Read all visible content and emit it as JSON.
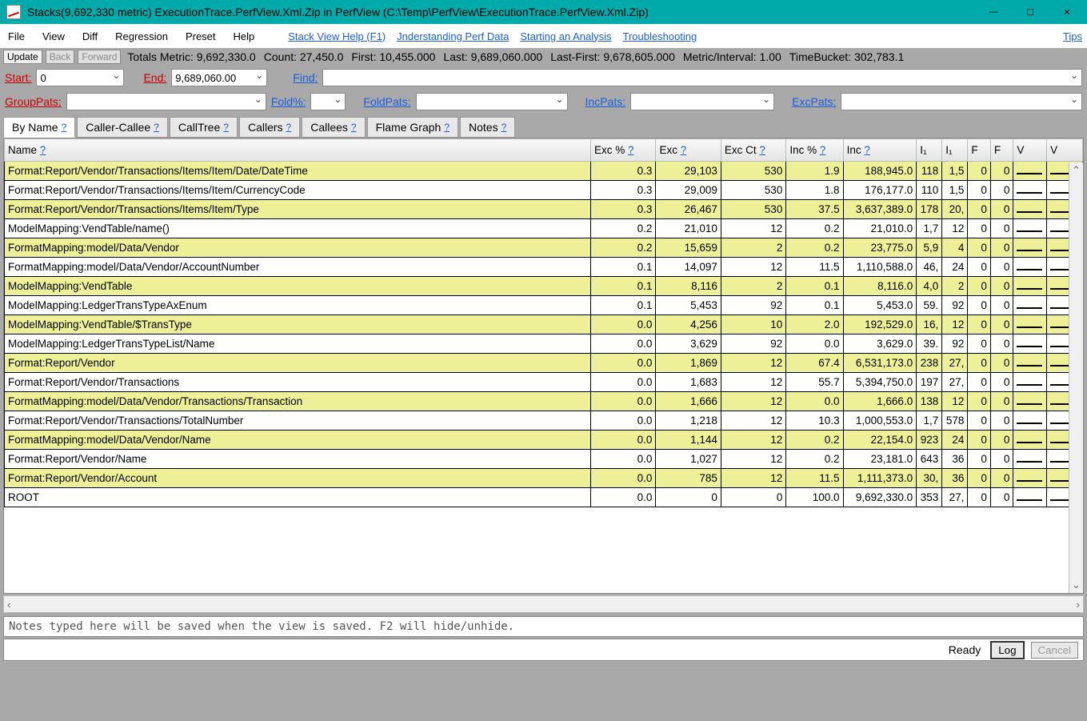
{
  "window": {
    "title": "Stacks(9,692,330 metric) ExecutionTrace.PerfView.Xml.Zip in PerfView (C:\\Temp\\PerfView\\ExecutionTrace.PerfView.Xml.Zip)"
  },
  "menu": {
    "file": "File",
    "view": "View",
    "diff": "Diff",
    "regression": "Regression",
    "preset": "Preset",
    "help": "Help",
    "links": {
      "stack_help": "Stack View Help (F1)",
      "understanding": "Jnderstanding Perf Data",
      "starting": "Starting an Analysis",
      "troubleshoot": "Troubleshooting",
      "tips": "Tips"
    }
  },
  "toolbar": {
    "update": "Update",
    "back": "Back",
    "forward": "Forward",
    "totals": "Totals Metric: 9,692,330.0",
    "count": "Count: 27,450.0",
    "first": "First: 10,455.000",
    "last": "Last: 9,689,060.000",
    "lastfirst": "Last-First: 9,678,605.000",
    "metric_interval": "Metric/Interval: 1.00",
    "timebucket": "TimeBucket: 302,783.1"
  },
  "filters": {
    "start_label": "Start:",
    "start_value": "0",
    "end_label": "End:",
    "end_value": "9,689,060.00",
    "find_label": "Find:",
    "find_value": "",
    "grouppats_label": "GroupPats:",
    "grouppats_value": "",
    "foldpct_label": "Fold%:",
    "foldpct_value": "",
    "foldpats_label": "FoldPats:",
    "foldpats_value": "",
    "incpats_label": "IncPats:",
    "incpats_value": "",
    "excpats_label": "ExcPats:",
    "excpats_value": ""
  },
  "tabs": {
    "byname": "By Name",
    "caller_callee": "Caller-Callee",
    "calltree": "CallTree",
    "callers": "Callers",
    "callees": "Callees",
    "flame": "Flame Graph",
    "notes": "Notes"
  },
  "columns": {
    "name": "Name",
    "exc_pct": "Exc %",
    "exc": "Exc",
    "exc_ct": "Exc Ct",
    "inc_pct": "Inc %",
    "inc": "Inc",
    "n1": "I₁",
    "n2": "I₁",
    "n3": "F",
    "n4": "F",
    "n5": "V",
    "n6": "V"
  },
  "rows": [
    {
      "hl": true,
      "name": "Format:Report/Vendor/Transactions/Items/Item/Date/DateTime",
      "exc_pct": "0.3",
      "exc": "29,103",
      "exc_ct": "530",
      "inc_pct": "1.9",
      "inc": "188,945.0",
      "c1": "118",
      "c2": "1,5",
      "c3": "0",
      "c4": "0"
    },
    {
      "hl": false,
      "name": "Format:Report/Vendor/Transactions/Items/Item/CurrencyCode",
      "exc_pct": "0.3",
      "exc": "29,009",
      "exc_ct": "530",
      "inc_pct": "1.8",
      "inc": "176,177.0",
      "c1": "110",
      "c2": "1,5",
      "c3": "0",
      "c4": "0"
    },
    {
      "hl": true,
      "name": "Format:Report/Vendor/Transactions/Items/Item/Type",
      "exc_pct": "0.3",
      "exc": "26,467",
      "exc_ct": "530",
      "inc_pct": "37.5",
      "inc": "3,637,389.0",
      "c1": "178",
      "c2": "20,",
      "c3": "0",
      "c4": "0"
    },
    {
      "hl": false,
      "name": "ModelMapping:VendTable/name()",
      "exc_pct": "0.2",
      "exc": "21,010",
      "exc_ct": "12",
      "inc_pct": "0.2",
      "inc": "21,010.0",
      "c1": "1,7",
      "c2": "12",
      "c3": "0",
      "c4": "0"
    },
    {
      "hl": true,
      "name": "FormatMapping:model/Data/Vendor",
      "exc_pct": "0.2",
      "exc": "15,659",
      "exc_ct": "2",
      "inc_pct": "0.2",
      "inc": "23,775.0",
      "c1": "5,9",
      "c2": "4",
      "c3": "0",
      "c4": "0"
    },
    {
      "hl": false,
      "name": "FormatMapping:model/Data/Vendor/AccountNumber",
      "exc_pct": "0.1",
      "exc": "14,097",
      "exc_ct": "12",
      "inc_pct": "11.5",
      "inc": "1,110,588.0",
      "c1": "46,",
      "c2": "24",
      "c3": "0",
      "c4": "0"
    },
    {
      "hl": true,
      "name": "ModelMapping:VendTable",
      "exc_pct": "0.1",
      "exc": "8,116",
      "exc_ct": "2",
      "inc_pct": "0.1",
      "inc": "8,116.0",
      "c1": "4,0",
      "c2": "2",
      "c3": "0",
      "c4": "0"
    },
    {
      "hl": false,
      "name": "ModelMapping:LedgerTransTypeAxEnum",
      "exc_pct": "0.1",
      "exc": "5,453",
      "exc_ct": "92",
      "inc_pct": "0.1",
      "inc": "5,453.0",
      "c1": "59.",
      "c2": "92",
      "c3": "0",
      "c4": "0"
    },
    {
      "hl": true,
      "name": "ModelMapping:VendTable/$TransType",
      "exc_pct": "0.0",
      "exc": "4,256",
      "exc_ct": "10",
      "inc_pct": "2.0",
      "inc": "192,529.0",
      "c1": "16,",
      "c2": "12",
      "c3": "0",
      "c4": "0"
    },
    {
      "hl": false,
      "name": "ModelMapping:LedgerTransTypeList/Name",
      "exc_pct": "0.0",
      "exc": "3,629",
      "exc_ct": "92",
      "inc_pct": "0.0",
      "inc": "3,629.0",
      "c1": "39.",
      "c2": "92",
      "c3": "0",
      "c4": "0"
    },
    {
      "hl": true,
      "name": "Format:Report/Vendor",
      "exc_pct": "0.0",
      "exc": "1,869",
      "exc_ct": "12",
      "inc_pct": "67.4",
      "inc": "6,531,173.0",
      "c1": "238",
      "c2": "27,",
      "c3": "0",
      "c4": "0"
    },
    {
      "hl": false,
      "name": "Format:Report/Vendor/Transactions",
      "exc_pct": "0.0",
      "exc": "1,683",
      "exc_ct": "12",
      "inc_pct": "55.7",
      "inc": "5,394,750.0",
      "c1": "197",
      "c2": "27,",
      "c3": "0",
      "c4": "0"
    },
    {
      "hl": true,
      "name": "FormatMapping:model/Data/Vendor/Transactions/Transaction",
      "exc_pct": "0.0",
      "exc": "1,666",
      "exc_ct": "12",
      "inc_pct": "0.0",
      "inc": "1,666.0",
      "c1": "138",
      "c2": "12",
      "c3": "0",
      "c4": "0"
    },
    {
      "hl": false,
      "name": "Format:Report/Vendor/Transactions/TotalNumber",
      "exc_pct": "0.0",
      "exc": "1,218",
      "exc_ct": "12",
      "inc_pct": "10.3",
      "inc": "1,000,553.0",
      "c1": "1,7",
      "c2": "578",
      "c3": "0",
      "c4": "0"
    },
    {
      "hl": true,
      "name": "FormatMapping:model/Data/Vendor/Name",
      "exc_pct": "0.0",
      "exc": "1,144",
      "exc_ct": "12",
      "inc_pct": "0.2",
      "inc": "22,154.0",
      "c1": "923",
      "c2": "24",
      "c3": "0",
      "c4": "0"
    },
    {
      "hl": false,
      "name": "Format:Report/Vendor/Name",
      "exc_pct": "0.0",
      "exc": "1,027",
      "exc_ct": "12",
      "inc_pct": "0.2",
      "inc": "23,181.0",
      "c1": "643",
      "c2": "36",
      "c3": "0",
      "c4": "0"
    },
    {
      "hl": true,
      "name": "Format:Report/Vendor/Account",
      "exc_pct": "0.0",
      "exc": "785",
      "exc_ct": "12",
      "inc_pct": "11.5",
      "inc": "1,111,373.0",
      "c1": "30,",
      "c2": "36",
      "c3": "0",
      "c4": "0"
    },
    {
      "hl": false,
      "name": "ROOT",
      "exc_pct": "0.0",
      "exc": "0",
      "exc_ct": "0",
      "inc_pct": "100.0",
      "inc": "9,692,330.0",
      "c1": "353",
      "c2": "27,",
      "c3": "0",
      "c4": "0"
    }
  ],
  "notes_placeholder": "Notes typed here will be saved when the view is saved. F2 will hide/unhide.",
  "status": {
    "ready": "Ready",
    "log": "Log",
    "cancel": "Cancel"
  },
  "colors": {
    "titlebar": "#00aaaa",
    "toolbar_bg": "#a9a9a9",
    "highlight_row": "#edf096",
    "link": "#1a5fdb",
    "red_label": "#c00"
  }
}
